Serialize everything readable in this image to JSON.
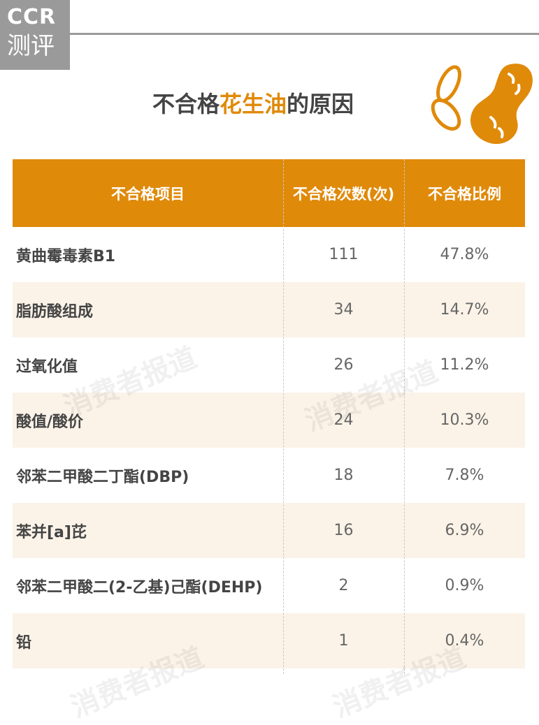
{
  "logo": {
    "line1": "CCR",
    "line2": "测评"
  },
  "title": {
    "part1": "不合格",
    "accent": "花生油",
    "part2": "的原因"
  },
  "table": {
    "headers": [
      "不合格项目",
      "不合格次数(次)",
      "不合格比例"
    ],
    "rows": [
      {
        "item": "黄曲霉毒素B1",
        "count": "111",
        "ratio": "47.8%"
      },
      {
        "item": "脂肪酸组成",
        "count": "34",
        "ratio": "14.7%"
      },
      {
        "item": "过氧化值",
        "count": "26",
        "ratio": "11.2%"
      },
      {
        "item": "酸值/酸价",
        "count": "24",
        "ratio": "10.3%"
      },
      {
        "item": "邻苯二甲酸二丁酯(DBP)",
        "count": "18",
        "ratio": "7.8%"
      },
      {
        "item": "苯并[a]芘",
        "count": "16",
        "ratio": "6.9%"
      },
      {
        "item": "邻苯二甲酸二(2-乙基)己酯(DEHP)",
        "count": "2",
        "ratio": "0.9%"
      },
      {
        "item": "铅",
        "count": "1",
        "ratio": "0.4%"
      }
    ]
  },
  "watermark": "消费者报道",
  "colors": {
    "accent": "#e08a0a",
    "stripe": "#fbf3e8",
    "logo_bg": "#9a9a9a"
  },
  "icons": {
    "peanut": "peanut-icon"
  }
}
